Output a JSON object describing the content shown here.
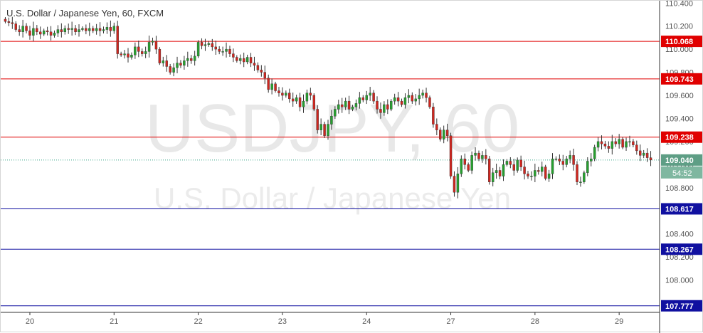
{
  "chart_data": {
    "type": "candlestick",
    "title": "U.S. Dollar / Japanese Yen, 60, FXCM",
    "watermark_symbol": "USDJPY, 60",
    "watermark_name": "U.S. Dollar / Japanese Yen",
    "ylim": [
      107.72,
      110.42
    ],
    "y_ticks": [
      110.4,
      110.2,
      110.0,
      109.8,
      109.6,
      109.4,
      109.2,
      109.0,
      108.8,
      108.4,
      108.2,
      108.0
    ],
    "y_tick_labels": [
      "110.400",
      "110.200",
      "110.000",
      "109.800",
      "109.600",
      "109.400",
      "109.200",
      "109.000",
      "108.800",
      "108.400",
      "108.200",
      "108.000"
    ],
    "x_labels": [
      "20",
      "21",
      "22",
      "23",
      "24",
      "27",
      "28",
      "29"
    ],
    "x_label_index": [
      7,
      31,
      55,
      79,
      103,
      127,
      151,
      175
    ],
    "resistance_levels": [
      {
        "label": "110.068",
        "value": 110.068
      },
      {
        "label": "109.743",
        "value": 109.743
      },
      {
        "label": "109.238",
        "value": 109.238
      }
    ],
    "support_levels": [
      {
        "label": "108.617",
        "value": 108.617
      },
      {
        "label": "108.267",
        "value": 108.267
      },
      {
        "label": "107.777",
        "value": 107.777
      }
    ],
    "last_price": {
      "label": "109.040",
      "value": 109.04
    },
    "countdown": "54:52",
    "closes": [
      110.24,
      110.23,
      110.22,
      110.17,
      110.15,
      110.2,
      110.16,
      110.12,
      110.18,
      110.15,
      110.13,
      110.16,
      110.15,
      110.12,
      110.14,
      110.17,
      110.15,
      110.18,
      110.17,
      110.18,
      110.15,
      110.17,
      110.18,
      110.16,
      110.18,
      110.16,
      110.18,
      110.16,
      110.17,
      110.19,
      110.16,
      110.2,
      109.96,
      109.95,
      109.96,
      109.93,
      109.95,
      110.02,
      109.98,
      109.96,
      109.98,
      110.06,
      110.07,
      110.0,
      109.88,
      109.9,
      109.85,
      109.8,
      109.84,
      109.88,
      109.86,
      109.9,
      109.92,
      109.9,
      109.94,
      110.06,
      110.03,
      110.04,
      110.05,
      110.02,
      110.0,
      109.98,
      109.98,
      110.0,
      109.96,
      109.93,
      109.9,
      109.92,
      109.89,
      109.93,
      109.88,
      109.86,
      109.82,
      109.8,
      109.75,
      109.65,
      109.7,
      109.64,
      109.62,
      109.6,
      109.62,
      109.57,
      109.55,
      109.58,
      109.5,
      109.55,
      109.62,
      109.6,
      109.48,
      109.3,
      109.35,
      109.25,
      109.35,
      109.42,
      109.48,
      109.52,
      109.5,
      109.55,
      109.48,
      109.5,
      109.53,
      109.58,
      109.56,
      109.6,
      109.62,
      109.55,
      109.48,
      109.45,
      109.52,
      109.48,
      109.55,
      109.58,
      109.55,
      109.52,
      109.58,
      109.6,
      109.55,
      109.57,
      109.6,
      109.62,
      109.58,
      109.5,
      109.35,
      109.3,
      109.22,
      109.3,
      109.25,
      108.9,
      108.76,
      108.92,
      109.05,
      109.0,
      108.95,
      109.08,
      109.1,
      109.05,
      109.08,
      109.05,
      108.85,
      108.93,
      108.95,
      108.9,
      109.0,
      109.03,
      109.0,
      108.95,
      109.04,
      108.98,
      108.92,
      108.9,
      108.9,
      108.95,
      108.94,
      108.98,
      108.88,
      108.92,
      109.05,
      109.05,
      109.03,
      109.0,
      109.05,
      109.08,
      109.0,
      108.85,
      108.85,
      108.93,
      109.03,
      109.05,
      109.15,
      109.2,
      109.18,
      109.16,
      109.14,
      109.2,
      109.18,
      109.22,
      109.15,
      109.2,
      109.2,
      109.17,
      109.12,
      109.08,
      109.1,
      109.06,
      109.04
    ]
  }
}
